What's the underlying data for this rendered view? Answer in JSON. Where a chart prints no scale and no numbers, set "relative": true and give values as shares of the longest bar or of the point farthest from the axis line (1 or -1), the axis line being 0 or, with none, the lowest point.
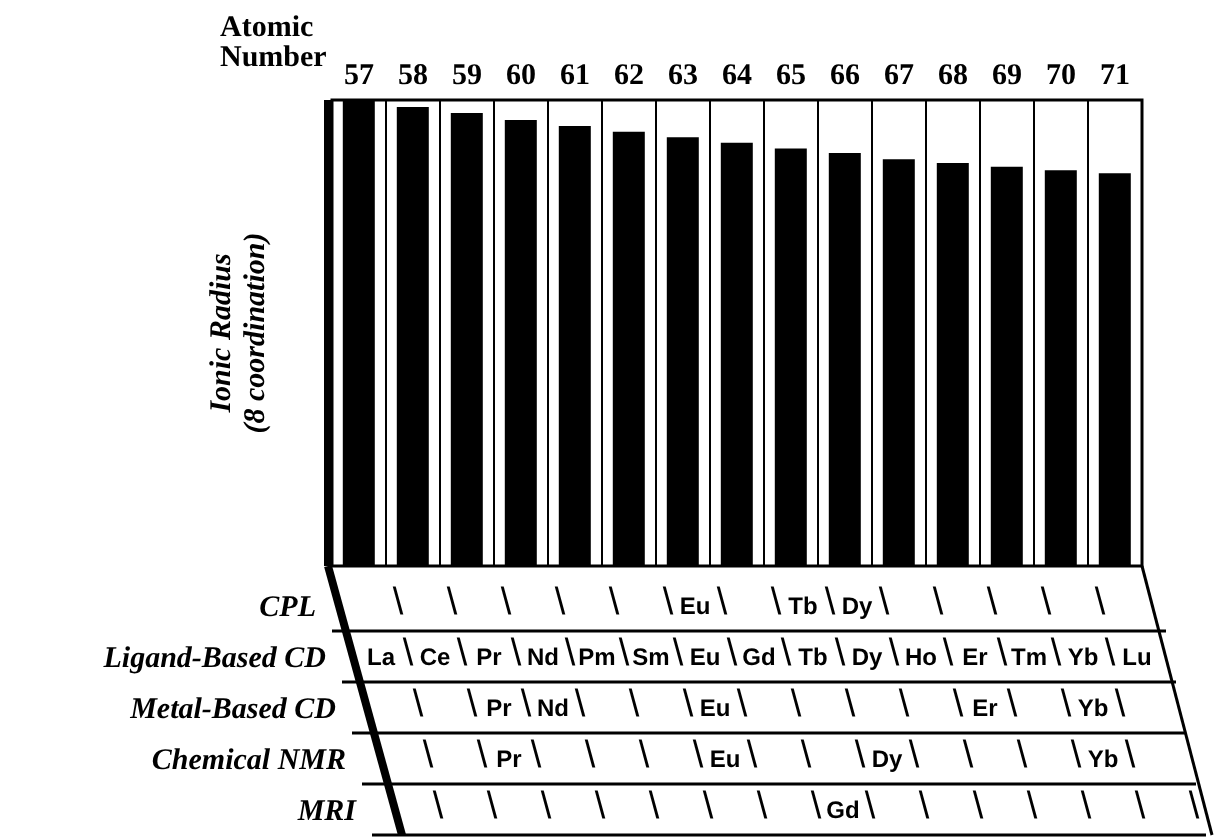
{
  "chart_data": {
    "type": "bar",
    "relative": true,
    "xlabel": "Atomic\nNumber",
    "ylabel": "Ionic Radius\n(8 coordination)",
    "categories": [
      "57",
      "58",
      "59",
      "60",
      "61",
      "62",
      "63",
      "64",
      "65",
      "66",
      "67",
      "68",
      "69",
      "70",
      "71"
    ],
    "values": [
      1,
      0.985,
      0.972,
      0.957,
      0.944,
      0.932,
      0.92,
      0.908,
      0.896,
      0.886,
      0.873,
      0.865,
      0.857,
      0.849,
      0.843
    ],
    "color": "#000000",
    "annotations": [
      "CPL",
      " \\ \\ \\ \\ \\ \\Eu\\ \\Tb\\Dy\\ \\ \\ \\ \\ ",
      "Ligand-Based CD",
      "La\\Ce\\Pr\\Nd\\Pm\\Sm\\Eu\\Gd\\Tb\\Dy\\Ho\\Er\\Tm\\Yb\\Lu",
      "Metal-Based CD",
      " \\ \\Pr\\Nd\\ \\ \\Eu\\ \\ \\ \\ \\Er\\ \\Yb\\ ",
      "Chemical NMR",
      " \\ \\Pr\\ \\ \\ \\Eu\\ \\ \\Dy\\ \\ \\ \\Yb\\ ",
      "MRI",
      " \\ \\ \\ \\ \\ \\ \\ \\Gd\\ \\ \\ \\ \\ \\ \\ "
    ]
  }
}
